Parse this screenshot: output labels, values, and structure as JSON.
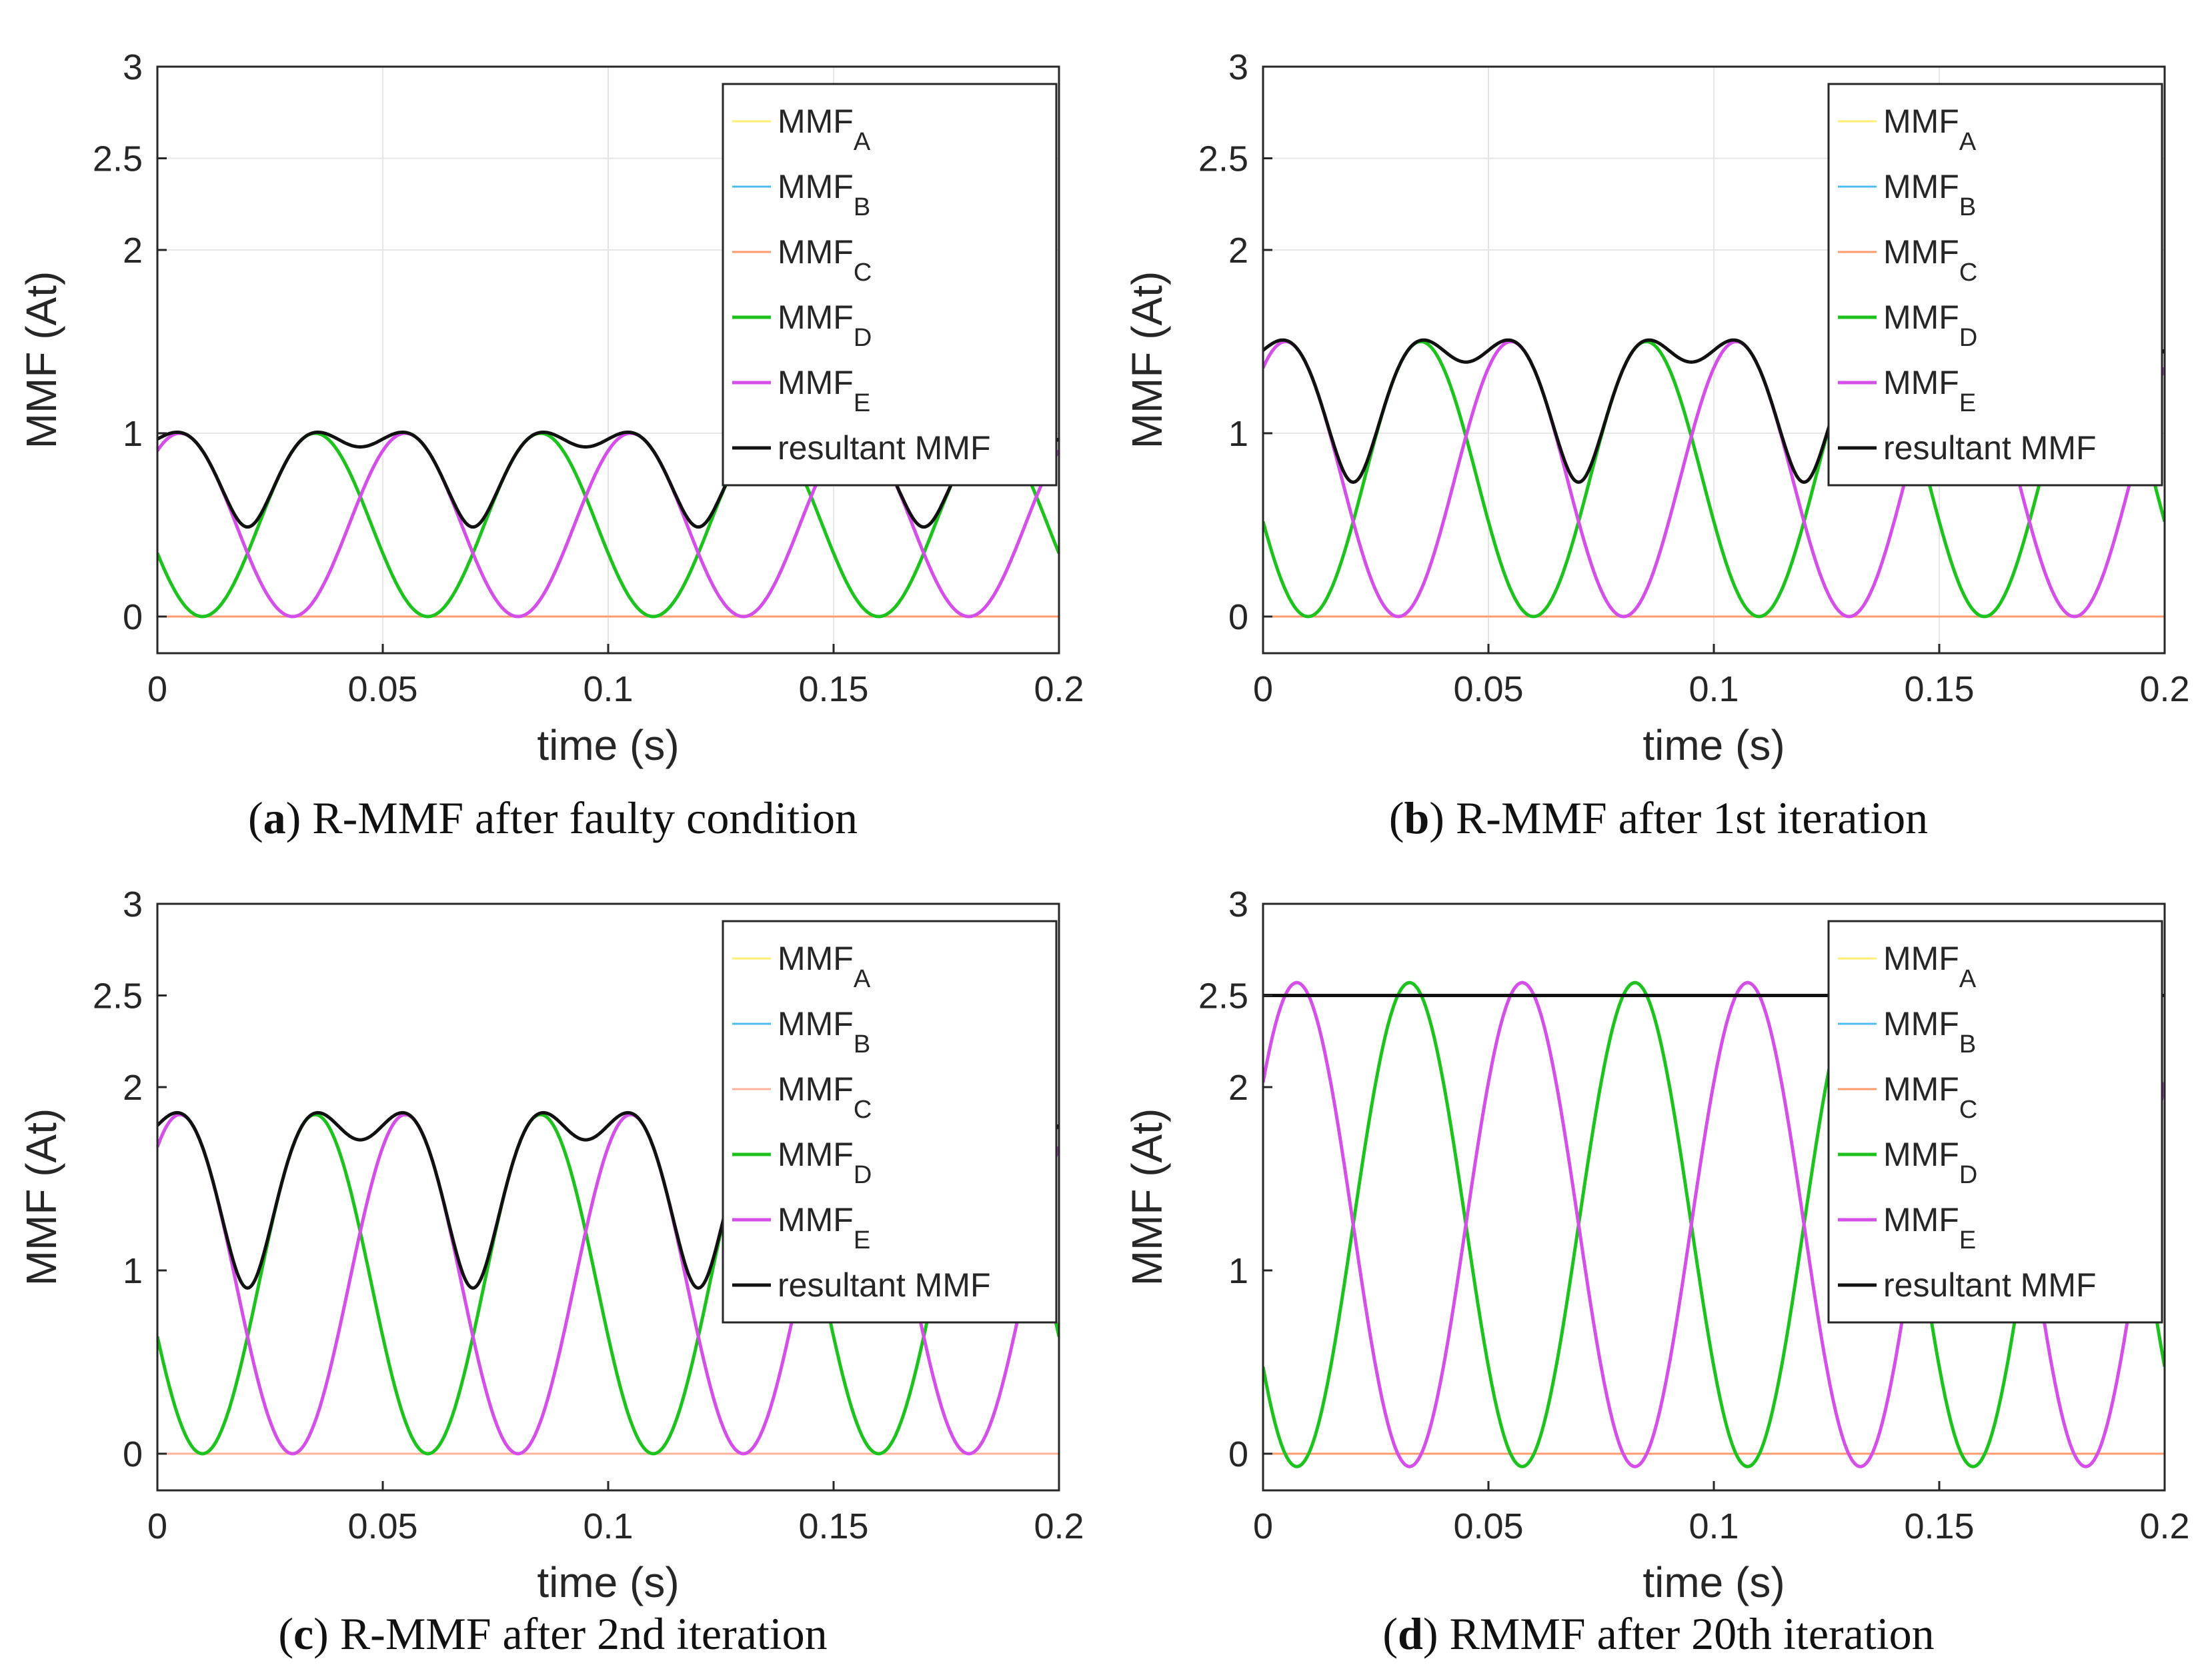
{
  "chart_data": [
    {
      "type": "line",
      "caption_letter": "a",
      "caption_text": " R-MMF after faulty condition",
      "xlabel": "time (s)",
      "ylabel": "MMF (At)",
      "xlim": [
        0,
        0.2
      ],
      "ylim": [
        -0.2,
        3
      ],
      "xticks": [
        "0",
        "0.05",
        "0.1",
        "0.15",
        "0.2"
      ],
      "yticks": [
        "0",
        "1",
        "2",
        "2.5",
        "3"
      ],
      "grid": true,
      "legend_position": "top-right",
      "series": [
        {
          "name": "MMF",
          "sub": "A",
          "color": "#ffef70",
          "formula": "zero",
          "amp": 0
        },
        {
          "name": "MMF",
          "sub": "B",
          "color": "#4cbbee",
          "formula": "zero",
          "amp": 0
        },
        {
          "name": "MMF",
          "sub": "C",
          "color": "#ff9a70",
          "formula": "zero",
          "amp": 0
        },
        {
          "name": "MMF",
          "sub": "D",
          "color": "#1ec21e",
          "formula": "d",
          "amp": 1.0
        },
        {
          "name": "MMF",
          "sub": "E",
          "color": "#d34fe8",
          "formula": "e",
          "amp": 1.0
        },
        {
          "name": "resultant MMF",
          "sub": "",
          "color": "#111111",
          "formula": "res",
          "amp": 1.0
        }
      ]
    },
    {
      "type": "line",
      "caption_letter": "b",
      "caption_text": " R-MMF after 1st iteration",
      "xlabel": "time (s)",
      "ylabel": "MMF (At)",
      "xlim": [
        0,
        0.2
      ],
      "ylim": [
        -0.2,
        3
      ],
      "xticks": [
        "0",
        "0.05",
        "0.1",
        "0.15",
        "0.2"
      ],
      "yticks": [
        "0",
        "1",
        "2",
        "2.5",
        "3"
      ],
      "grid": true,
      "legend_position": "top-right",
      "series": [
        {
          "name": "MMF",
          "sub": "A",
          "color": "#ffef70",
          "formula": "zero",
          "amp": 0
        },
        {
          "name": "MMF",
          "sub": "B",
          "color": "#4cbbee",
          "formula": "zero",
          "amp": 0
        },
        {
          "name": "MMF",
          "sub": "C",
          "color": "#ff9a70",
          "formula": "zero",
          "amp": 0
        },
        {
          "name": "MMF",
          "sub": "D",
          "color": "#1ec21e",
          "formula": "d",
          "amp": 1.5
        },
        {
          "name": "MMF",
          "sub": "E",
          "color": "#d34fe8",
          "formula": "e",
          "amp": 1.5
        },
        {
          "name": "resultant MMF",
          "sub": "",
          "color": "#111111",
          "formula": "res",
          "amp": 1.5
        }
      ]
    },
    {
      "type": "line",
      "caption_letter": "c",
      "caption_text": " R-MMF after 2nd iteration",
      "xlabel": "time (s)",
      "ylabel": "MMF (At)",
      "xlim": [
        0,
        0.2
      ],
      "ylim": [
        -0.2,
        3
      ],
      "xticks": [
        "0",
        "0.05",
        "0.1",
        "0.15",
        "0.2"
      ],
      "yticks": [
        "0",
        "1",
        "2",
        "2.5",
        "3"
      ],
      "grid": false,
      "legend_position": "top-right",
      "series": [
        {
          "name": "MMF",
          "sub": "A",
          "color": "#ffef70",
          "formula": "zero",
          "amp": 0
        },
        {
          "name": "MMF",
          "sub": "B",
          "color": "#4cbbee",
          "formula": "zero",
          "amp": 0
        },
        {
          "name": "MMF",
          "sub": "C",
          "color": "#ffb39a",
          "formula": "zero",
          "amp": 0
        },
        {
          "name": "MMF",
          "sub": "D",
          "color": "#1ec21e",
          "formula": "d",
          "amp": 1.85
        },
        {
          "name": "MMF",
          "sub": "E",
          "color": "#d34fe8",
          "formula": "e",
          "amp": 1.85
        },
        {
          "name": "resultant MMF",
          "sub": "",
          "color": "#111111",
          "formula": "res",
          "amp": 1.85
        }
      ]
    },
    {
      "type": "line",
      "caption_letter": "d",
      "caption_text": " RMMF after 20th iteration",
      "xlabel": "time (s)",
      "ylabel": "MMF (At)",
      "xlim": [
        0,
        0.2
      ],
      "ylim": [
        -0.2,
        3
      ],
      "xticks": [
        "0",
        "0.05",
        "0.1",
        "0.15",
        "0.2"
      ],
      "yticks": [
        "0",
        "1",
        "2",
        "2.5",
        "3"
      ],
      "grid": false,
      "legend_position": "top-right",
      "series": [
        {
          "name": "MMF",
          "sub": "A",
          "color": "#ffef70",
          "formula": "zero",
          "amp": 0
        },
        {
          "name": "MMF",
          "sub": "B",
          "color": "#4cbbee",
          "formula": "zero",
          "amp": 0
        },
        {
          "name": "MMF",
          "sub": "C",
          "color": "#ff9a70",
          "formula": "zero",
          "amp": 0
        },
        {
          "name": "MMF",
          "sub": "D",
          "color": "#1ec21e",
          "formula": "sinD",
          "amp": 2.6
        },
        {
          "name": "MMF",
          "sub": "E",
          "color": "#d34fe8",
          "formula": "sinE",
          "amp": 2.6
        },
        {
          "name": "resultant MMF",
          "sub": "",
          "color": "#111111",
          "formula": "const",
          "amp": 2.5
        }
      ]
    }
  ]
}
